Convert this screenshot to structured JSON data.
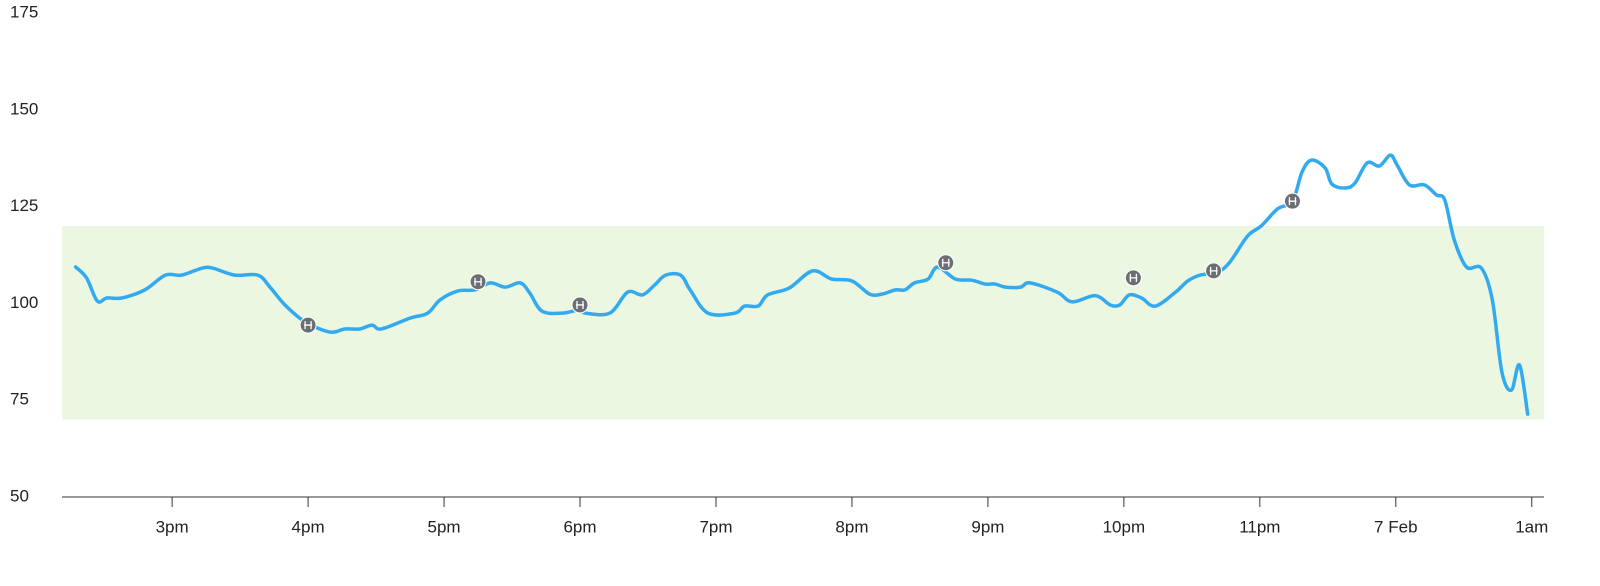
{
  "chart_data": {
    "type": "line",
    "xlim": [
      14.19,
      25.09
    ],
    "xticks": [
      {
        "value": 15,
        "label": "3pm"
      },
      {
        "value": 16,
        "label": "4pm"
      },
      {
        "value": 17,
        "label": "5pm"
      },
      {
        "value": 18,
        "label": "6pm"
      },
      {
        "value": 19,
        "label": "7pm"
      },
      {
        "value": 20,
        "label": "8pm"
      },
      {
        "value": 21,
        "label": "9pm"
      },
      {
        "value": 22,
        "label": "10pm"
      },
      {
        "value": 23,
        "label": "11pm"
      },
      {
        "value": 24,
        "label": "7 Feb"
      },
      {
        "value": 25,
        "label": "1am"
      }
    ],
    "ylim": [
      50,
      175
    ],
    "yticks": [
      50,
      75,
      100,
      125,
      150,
      175
    ],
    "target_range": [
      70,
      120
    ],
    "target_color": "#ecf7e2",
    "series": [
      {
        "color": "#33aaf0",
        "x": [
          14.29,
          14.37,
          14.45,
          14.52,
          14.63,
          14.8,
          14.95,
          15.07,
          15.22,
          15.3,
          15.46,
          15.63,
          15.72,
          15.83,
          15.98,
          16.16,
          16.27,
          16.38,
          16.47,
          16.54,
          16.75,
          16.88,
          16.97,
          17.1,
          17.23,
          17.34,
          17.45,
          17.56,
          17.63,
          17.72,
          17.87,
          17.99,
          18.04,
          18.22,
          18.35,
          18.46,
          18.55,
          18.63,
          18.74,
          18.81,
          18.94,
          19.14,
          19.21,
          19.31,
          19.38,
          19.54,
          19.71,
          19.85,
          20.0,
          20.13,
          20.22,
          20.32,
          20.39,
          20.46,
          20.56,
          20.63,
          20.76,
          20.88,
          20.98,
          21.05,
          21.13,
          21.24,
          21.31,
          21.51,
          21.62,
          21.79,
          21.9,
          21.97,
          22.04,
          22.13,
          22.23,
          22.38,
          22.47,
          22.56,
          22.69,
          22.78,
          22.91,
          23.01,
          23.13,
          23.24,
          23.31,
          23.38,
          23.48,
          23.53,
          23.63,
          23.7,
          23.79,
          23.88,
          23.96,
          24.01,
          24.1,
          24.21,
          24.3,
          24.36,
          24.43,
          24.52,
          24.63,
          24.71,
          24.78,
          24.85,
          24.91,
          24.97
        ],
        "values": [
          109.4,
          106.6,
          100.6,
          101.4,
          101.4,
          103.5,
          107.3,
          107.3,
          109.1,
          109.1,
          107.3,
          107.3,
          104.2,
          99.6,
          95.2,
          92.6,
          93.4,
          93.4,
          94.4,
          93.4,
          96.2,
          97.5,
          100.9,
          103.2,
          103.5,
          105.3,
          104.2,
          105.3,
          102.7,
          98,
          97.5,
          98.3,
          97.5,
          97.5,
          102.9,
          102.2,
          104.8,
          107.3,
          107.3,
          103.5,
          97.5,
          97.5,
          99.3,
          99.3,
          102.2,
          104,
          108.4,
          106.3,
          105.8,
          102.4,
          102.4,
          103.5,
          103.5,
          105.3,
          106.3,
          109.4,
          106.3,
          106,
          105,
          105,
          104.2,
          104.2,
          105.3,
          102.9,
          100.4,
          102,
          99.6,
          99.6,
          102.2,
          101.4,
          99.3,
          102.9,
          105.8,
          107.3,
          108.1,
          110.7,
          117.4,
          120,
          124.4,
          126.4,
          133.9,
          137,
          135,
          130.8,
          129.8,
          131.1,
          136.3,
          135.5,
          138.3,
          135.7,
          130.6,
          130.6,
          128,
          126.7,
          116.4,
          109.4,
          109.1,
          100.9,
          82.3,
          77.6,
          84.1,
          71.4
        ]
      }
    ],
    "events": {
      "color": "#6b6f73",
      "x": [
        16.0,
        17.25,
        18.0,
        20.69,
        22.07,
        22.66,
        23.24
      ],
      "values": [
        94.4,
        105.6,
        99.6,
        110.5,
        106.6,
        108.4,
        126.4
      ]
    }
  }
}
